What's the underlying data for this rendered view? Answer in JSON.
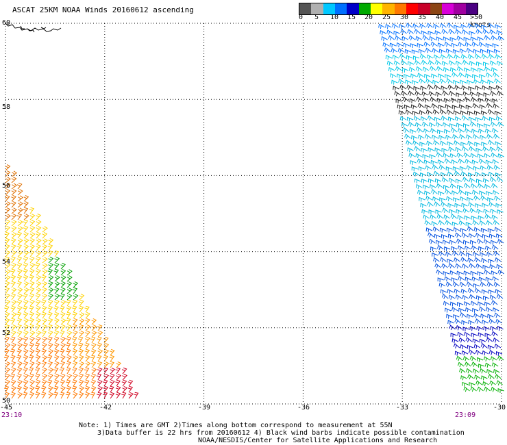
{
  "title": "ASCAT 25KM NOAA Winds 20160612 ascending",
  "legend": {
    "colors": [
      "#555555",
      "#b0b0b0",
      "#00c8ff",
      "#0070ff",
      "#0000c8",
      "#00aa00",
      "#ffff00",
      "#ffb400",
      "#ff7800",
      "#ff0000",
      "#c80028",
      "#8b4513",
      "#d800d8",
      "#a000a0",
      "#4b0082"
    ],
    "labels": [
      "0",
      "5",
      "10",
      "15",
      "20",
      "25",
      "30",
      "35",
      "40",
      "45",
      ">50 knots"
    ]
  },
  "axes": {
    "lat_labels": [
      "60",
      "58",
      "56",
      "54",
      "52",
      "50"
    ],
    "lon_labels": [
      "-45",
      "-42",
      "-39",
      "-36",
      "-33",
      "-30"
    ]
  },
  "times": {
    "left": "23:10",
    "right": "23:09"
  },
  "notes": {
    "line1": "Note: 1) Times are GMT 2)Times along bottom correspond to measurement at 55N",
    "line2": "3)Data buffer is 22 hrs from 20160612 4) Black wind barbs indicate possible contamination",
    "line3": "NOAA/NESDIS/Center for Satellite Applications and Research"
  }
}
